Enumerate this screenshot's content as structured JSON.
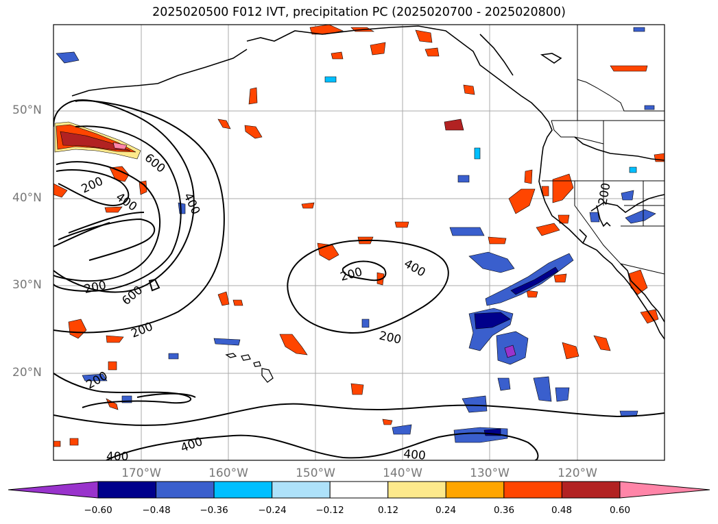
{
  "title": "2025020500 F012 IVT, precipitation PC (2025020700 - 2025020800)",
  "lat_labels": [
    "50°N",
    "40°N",
    "30°N",
    "20°N"
  ],
  "lon_labels": [
    "170°W",
    "160°W",
    "150°W",
    "140°W",
    "130°W",
    "120°W"
  ],
  "contour_labels": [
    "200",
    "400",
    "600",
    "400",
    "200",
    "600",
    "200",
    "200",
    "400",
    "200",
    "200",
    "400",
    "400",
    "200"
  ],
  "colorbar": {
    "ticks": [
      "−0.60",
      "−0.48",
      "−0.36",
      "−0.24",
      "−0.12",
      "0.12",
      "0.24",
      "0.36",
      "0.48",
      "0.60"
    ],
    "colors": [
      "#9933cc",
      "#00008b",
      "#3a5fcd",
      "#00bfff",
      "#aee2fa",
      "#ffffff",
      "#fde98c",
      "#ffa500",
      "#ff4500",
      "#b22222",
      "#ff85a8"
    ]
  },
  "colors": {
    "contour": "#000000",
    "coast": "#000000",
    "grid": "#aaaaaa",
    "axis_label": "#777777",
    "pos_low": "#fde98c",
    "pos_mid": "#ffa500",
    "pos_high": "#ff4500",
    "pos_top": "#b22222",
    "pos_peak": "#ff85a8",
    "neg_low": "#aee2fa",
    "neg_mid": "#00bfff",
    "neg_high": "#3a5fcd",
    "neg_top": "#00008b",
    "neg_peak": "#9933cc"
  }
}
